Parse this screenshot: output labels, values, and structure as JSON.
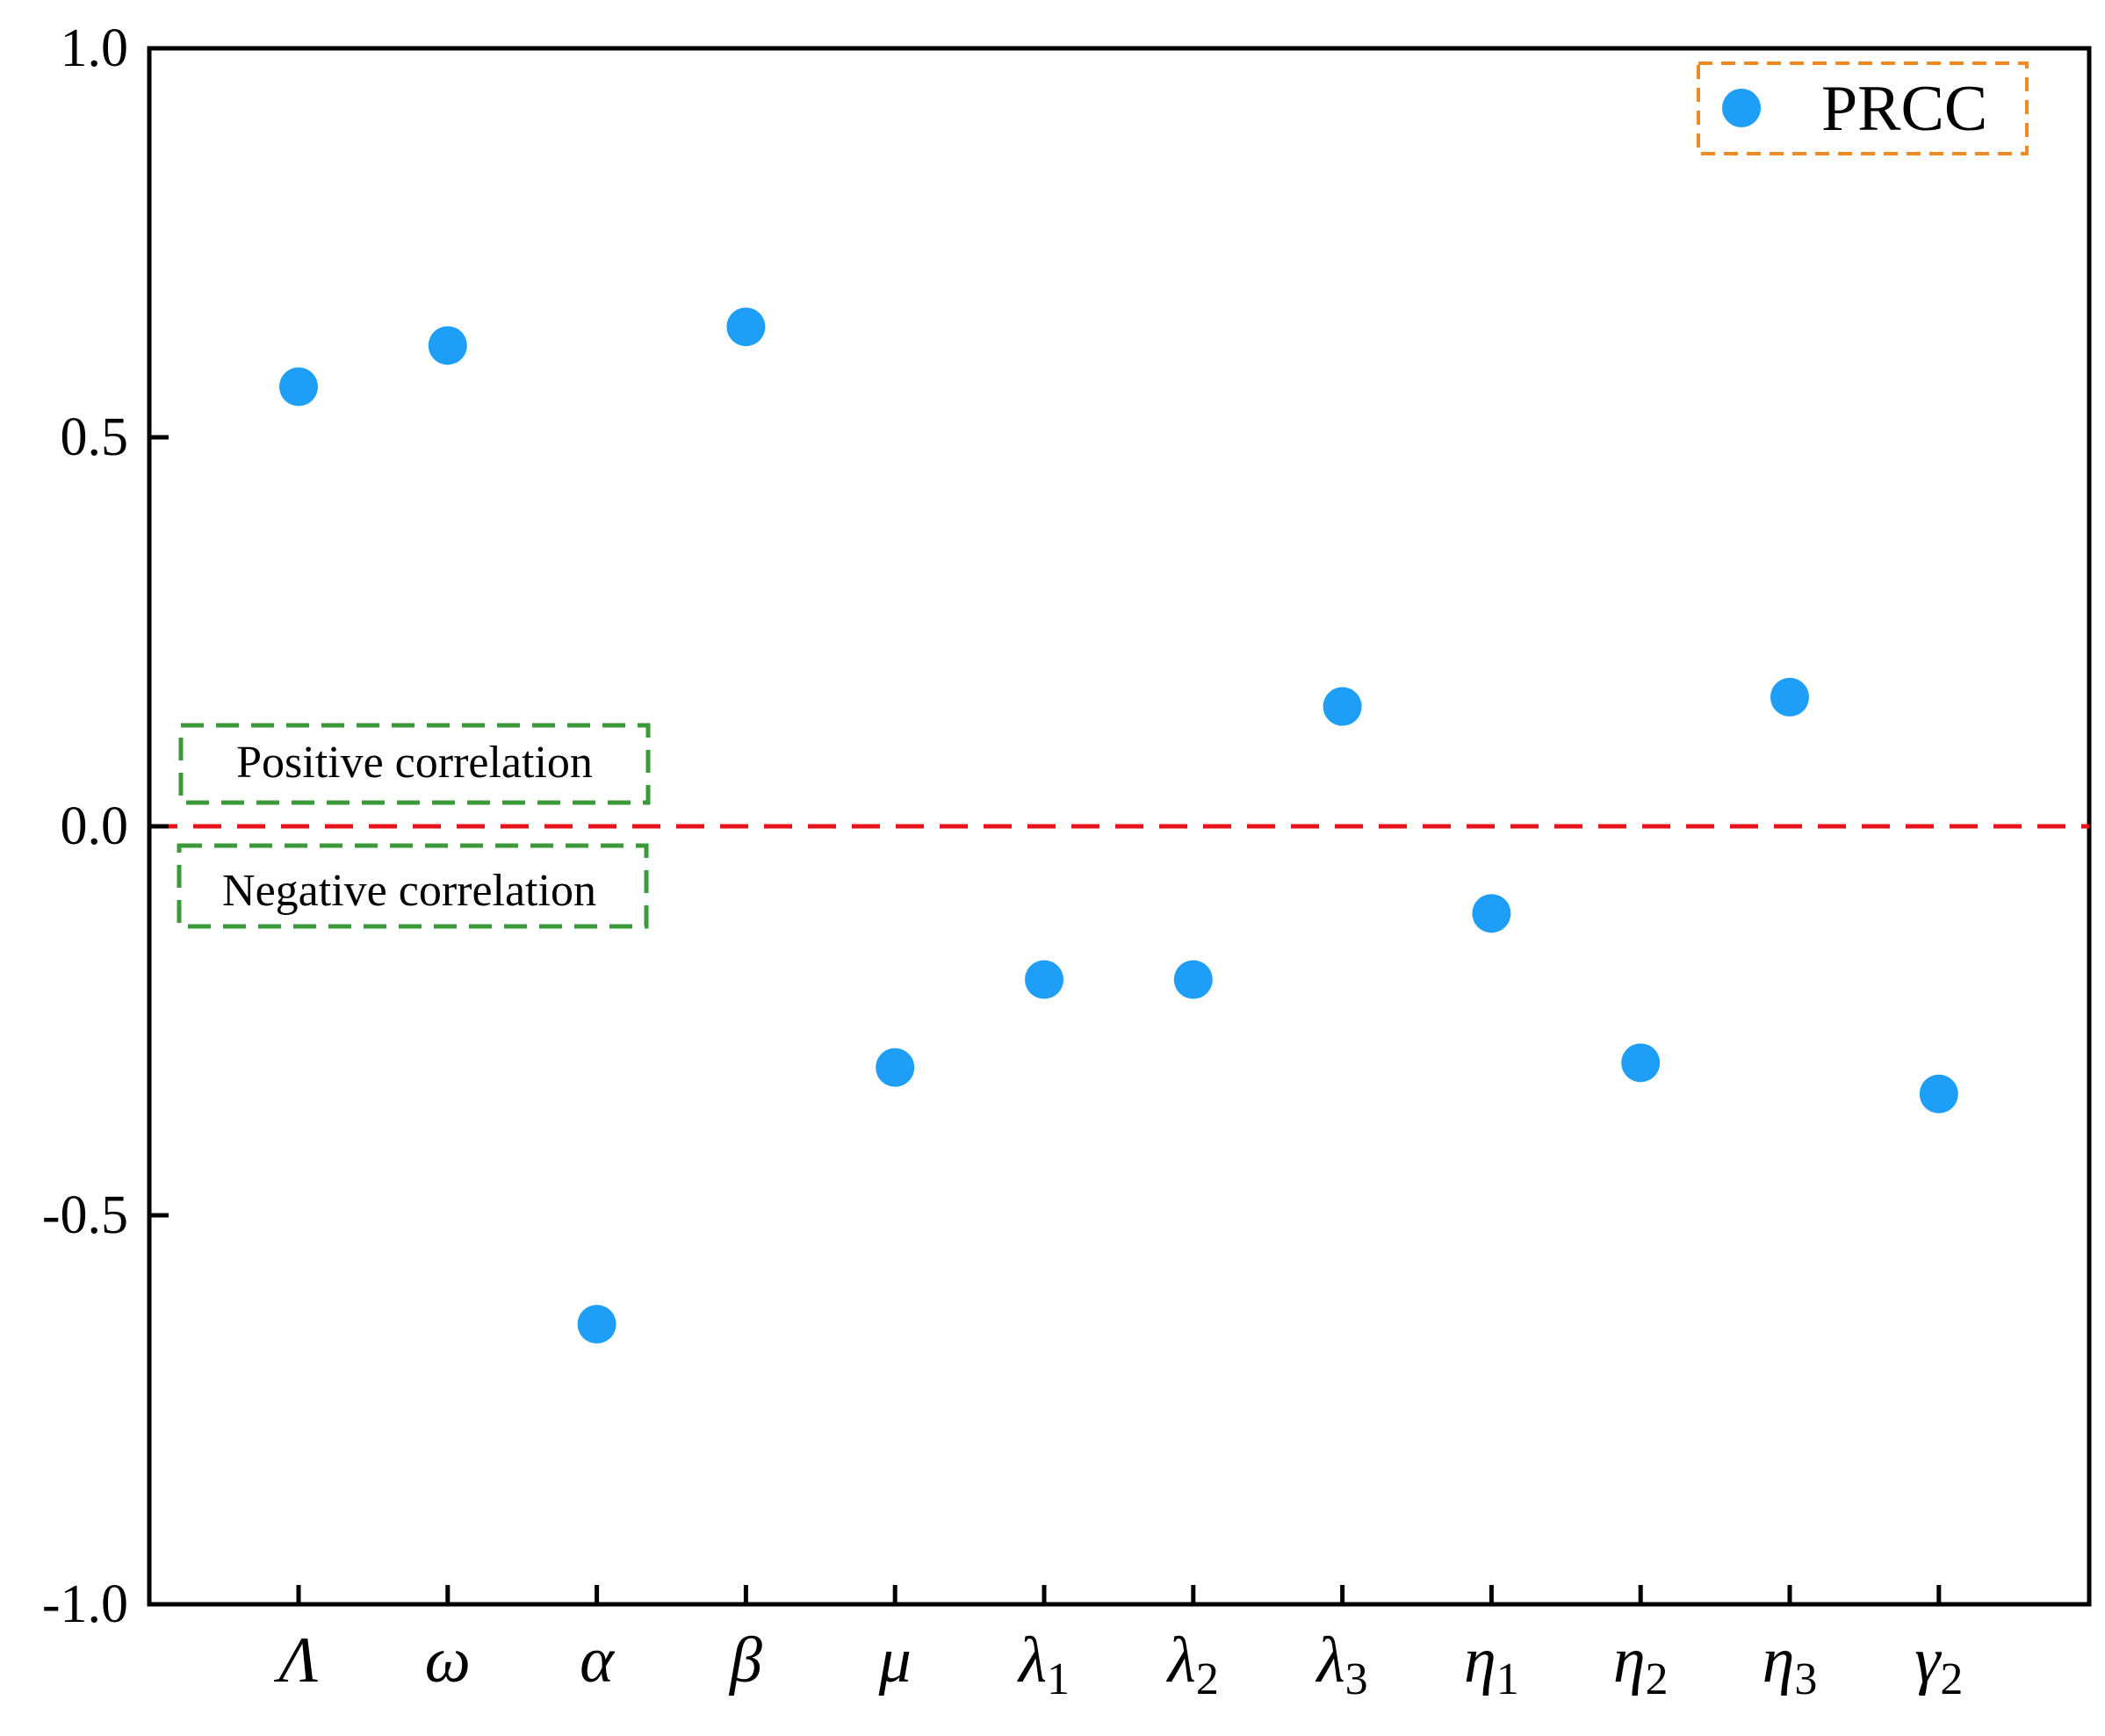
{
  "chart_data": {
    "type": "scatter",
    "categories": [
      {
        "base": "Λ",
        "sub": ""
      },
      {
        "base": "ω",
        "sub": ""
      },
      {
        "base": "α",
        "sub": ""
      },
      {
        "base": "β",
        "sub": ""
      },
      {
        "base": "μ",
        "sub": ""
      },
      {
        "base": "λ",
        "sub": "1"
      },
      {
        "base": "λ",
        "sub": "2"
      },
      {
        "base": "λ",
        "sub": "3"
      },
      {
        "base": "η",
        "sub": "1"
      },
      {
        "base": "η",
        "sub": "2"
      },
      {
        "base": "η",
        "sub": "3"
      },
      {
        "base": "γ",
        "sub": "2"
      }
    ],
    "series": [
      {
        "name": "PRCC",
        "color": "#1E9EF7",
        "values": [
          0.565,
          0.618,
          -0.64,
          0.642,
          -0.31,
          -0.197,
          -0.197,
          0.154,
          -0.112,
          -0.304,
          0.166,
          -0.344
        ]
      }
    ],
    "ylim": [
      -1.0,
      1.0
    ],
    "yticks": [
      "1.0",
      "0.5",
      "0.0",
      "-0.5",
      "-1.0"
    ],
    "ytick_values": [
      1.0,
      0.5,
      0.0,
      -0.5,
      -1.0
    ],
    "reference_line": {
      "y": 0.0,
      "color": "#E8131A",
      "style": "dashed"
    },
    "annotations": [
      {
        "text": "Positive correlation",
        "color": "#3A9A3A"
      },
      {
        "text": "Negative correlation",
        "color": "#3A9A3A"
      }
    ],
    "legend": {
      "placement": "top-right",
      "border_color": "#F08A24"
    },
    "grid": false
  }
}
